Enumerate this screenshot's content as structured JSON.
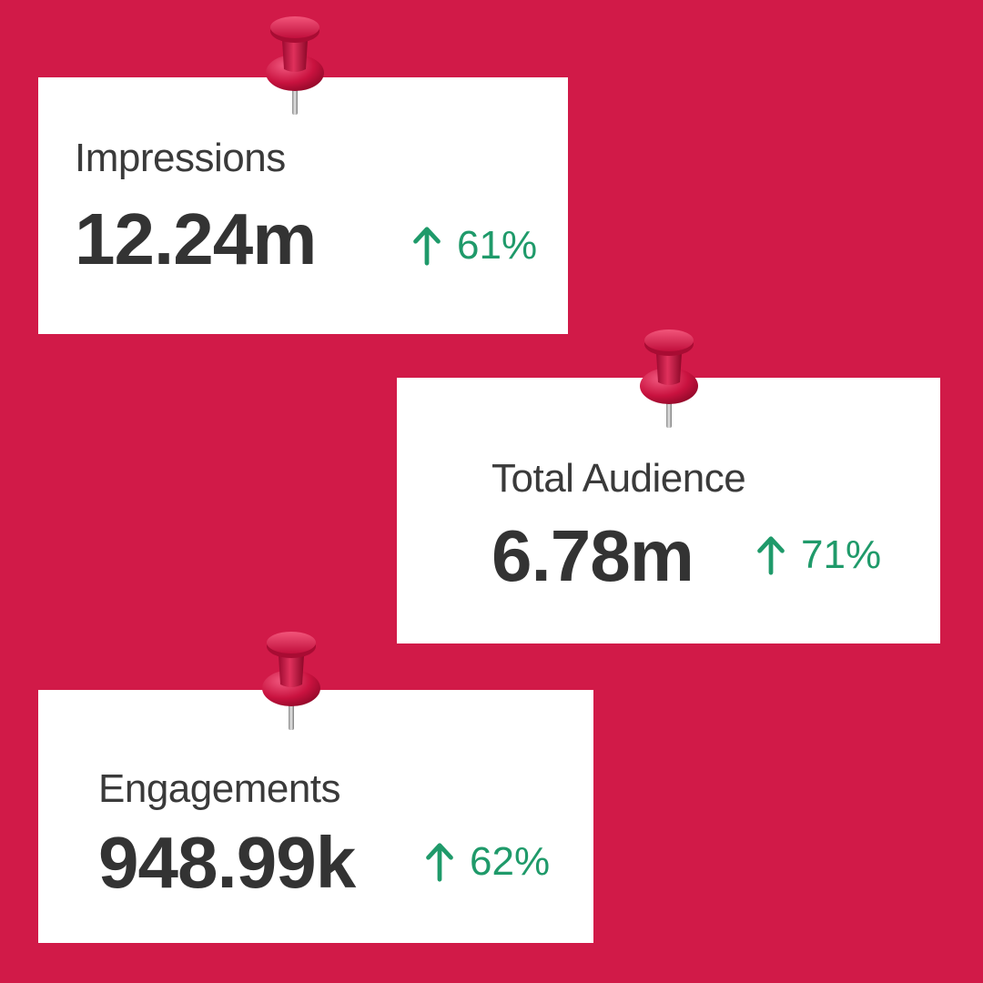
{
  "colors": {
    "background": "#d11a48",
    "card": "#ffffff",
    "label_text": "#3a3a3a",
    "value_text": "#333333",
    "positive_change": "#1f9a6a",
    "pin": "#c8103e"
  },
  "icons": {
    "pin": "pushpin-icon",
    "trend": "arrow-up-icon"
  },
  "cards": [
    {
      "label": "Impressions",
      "value": "12.24m",
      "change": "61%"
    },
    {
      "label": "Total Audience",
      "value": "6.78m",
      "change": "71%"
    },
    {
      "label": "Engagements",
      "value": "948.99k",
      "change": "62%"
    }
  ]
}
